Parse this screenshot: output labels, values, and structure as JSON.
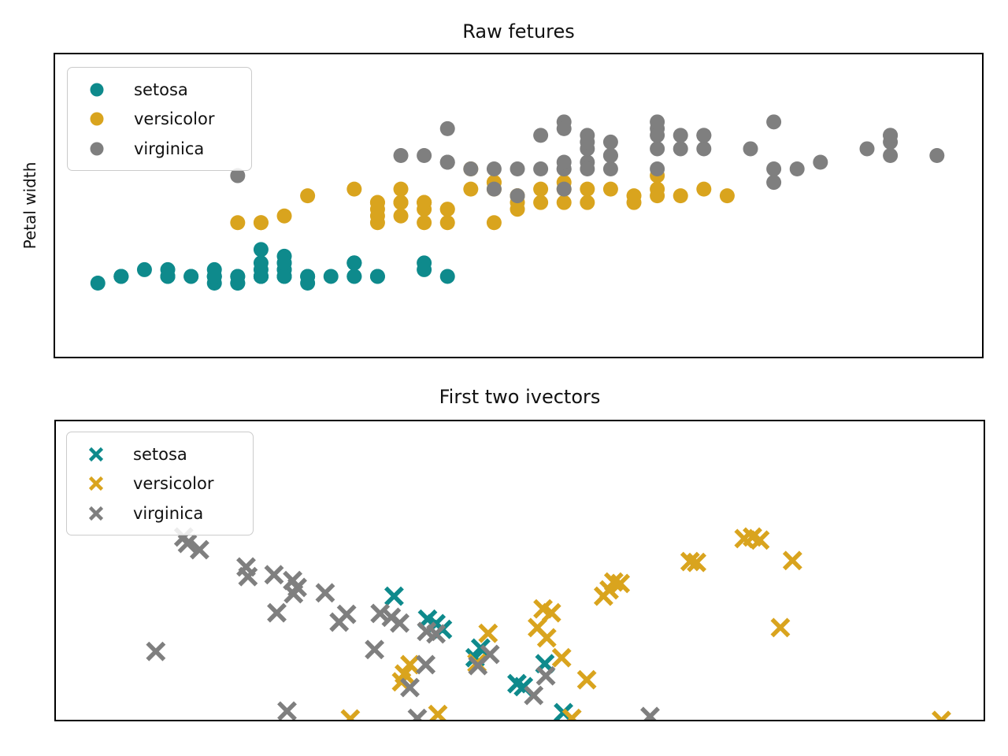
{
  "figure": {
    "background": "#ffffff"
  },
  "palette": {
    "setosa": "#0e8a8c",
    "versicolor": "#d9a41e",
    "virginica": "#7f7f7f"
  },
  "chart_data": [
    {
      "id": "raw-features",
      "type": "scatter",
      "title": "Raw fetures",
      "xlabel": "",
      "ylabel": "Petal width",
      "marker": "circle",
      "marker_size": 9.5,
      "grid": false,
      "xlim": [
        4.11,
        8.1
      ],
      "ylim": [
        -1.02,
        3.53
      ],
      "legend": {
        "location": "upper left",
        "entries": [
          "setosa",
          "versicolor",
          "virginica"
        ]
      },
      "series": [
        {
          "name": "setosa",
          "color": "#0e8a8c",
          "points": [
            [
              5.1,
              0.2
            ],
            [
              4.9,
              0.2
            ],
            [
              4.7,
              0.2
            ],
            [
              4.6,
              0.2
            ],
            [
              5.0,
              0.2
            ],
            [
              5.4,
              0.4
            ],
            [
              4.6,
              0.3
            ],
            [
              5.0,
              0.2
            ],
            [
              4.4,
              0.2
            ],
            [
              4.9,
              0.1
            ],
            [
              5.4,
              0.2
            ],
            [
              4.8,
              0.2
            ],
            [
              4.8,
              0.1
            ],
            [
              4.3,
              0.1
            ],
            [
              5.8,
              0.2
            ],
            [
              5.7,
              0.4
            ],
            [
              5.4,
              0.4
            ],
            [
              5.1,
              0.3
            ],
            [
              5.7,
              0.3
            ],
            [
              5.1,
              0.3
            ],
            [
              5.4,
              0.2
            ],
            [
              5.1,
              0.4
            ],
            [
              4.6,
              0.2
            ],
            [
              5.1,
              0.5
            ],
            [
              4.8,
              0.2
            ],
            [
              5.0,
              0.2
            ],
            [
              5.0,
              0.4
            ],
            [
              5.2,
              0.2
            ],
            [
              5.2,
              0.2
            ],
            [
              4.7,
              0.2
            ],
            [
              4.8,
              0.2
            ],
            [
              5.4,
              0.4
            ],
            [
              5.2,
              0.1
            ],
            [
              5.5,
              0.2
            ],
            [
              4.9,
              0.2
            ],
            [
              5.0,
              0.2
            ],
            [
              5.5,
              0.2
            ],
            [
              4.9,
              0.1
            ],
            [
              4.4,
              0.2
            ],
            [
              5.1,
              0.2
            ],
            [
              5.0,
              0.3
            ],
            [
              4.5,
              0.3
            ],
            [
              4.4,
              0.2
            ],
            [
              5.0,
              0.6
            ],
            [
              5.1,
              0.4
            ],
            [
              4.8,
              0.3
            ],
            [
              5.1,
              0.2
            ],
            [
              4.6,
              0.2
            ],
            [
              5.3,
              0.2
            ],
            [
              5.0,
              0.2
            ]
          ]
        },
        {
          "name": "versicolor",
          "color": "#d9a41e",
          "points": [
            [
              7.0,
              1.4
            ],
            [
              6.4,
              1.5
            ],
            [
              6.9,
              1.5
            ],
            [
              5.5,
              1.3
            ],
            [
              6.5,
              1.5
            ],
            [
              5.7,
              1.3
            ],
            [
              6.3,
              1.6
            ],
            [
              4.9,
              1.0
            ],
            [
              6.6,
              1.3
            ],
            [
              5.2,
              1.4
            ],
            [
              5.0,
              1.0
            ],
            [
              5.9,
              1.5
            ],
            [
              6.0,
              1.0
            ],
            [
              6.1,
              1.4
            ],
            [
              5.6,
              1.3
            ],
            [
              6.7,
              1.4
            ],
            [
              5.6,
              1.5
            ],
            [
              5.8,
              1.0
            ],
            [
              6.2,
              1.5
            ],
            [
              5.6,
              1.1
            ],
            [
              5.9,
              1.8
            ],
            [
              6.1,
              1.3
            ],
            [
              6.3,
              1.5
            ],
            [
              6.1,
              1.2
            ],
            [
              6.4,
              1.3
            ],
            [
              6.6,
              1.4
            ],
            [
              6.8,
              1.4
            ],
            [
              6.7,
              1.7
            ],
            [
              6.0,
              1.5
            ],
            [
              5.7,
              1.0
            ],
            [
              5.5,
              1.1
            ],
            [
              5.5,
              1.0
            ],
            [
              5.8,
              1.2
            ],
            [
              6.0,
              1.6
            ],
            [
              5.4,
              1.5
            ],
            [
              6.0,
              1.6
            ],
            [
              6.7,
              1.5
            ],
            [
              6.3,
              1.3
            ],
            [
              5.6,
              1.3
            ],
            [
              5.5,
              1.3
            ],
            [
              5.5,
              1.2
            ],
            [
              6.1,
              1.4
            ],
            [
              5.8,
              1.2
            ],
            [
              5.0,
              1.0
            ],
            [
              5.6,
              1.3
            ],
            [
              5.7,
              1.2
            ],
            [
              5.7,
              1.3
            ],
            [
              6.2,
              1.3
            ],
            [
              5.1,
              1.1
            ],
            [
              5.7,
              1.3
            ]
          ]
        },
        {
          "name": "virginica",
          "color": "#7f7f7f",
          "points": [
            [
              6.3,
              2.5
            ],
            [
              5.8,
              1.9
            ],
            [
              7.1,
              2.1
            ],
            [
              6.3,
              1.8
            ],
            [
              6.5,
              2.2
            ],
            [
              7.6,
              2.1
            ],
            [
              4.9,
              1.7
            ],
            [
              7.3,
              1.8
            ],
            [
              6.7,
              1.8
            ],
            [
              7.2,
              2.5
            ],
            [
              6.5,
              2.0
            ],
            [
              6.4,
              1.9
            ],
            [
              6.8,
              2.1
            ],
            [
              5.7,
              2.0
            ],
            [
              5.8,
              2.4
            ],
            [
              6.4,
              2.3
            ],
            [
              6.5,
              1.8
            ],
            [
              7.7,
              2.2
            ],
            [
              7.7,
              2.3
            ],
            [
              6.0,
              1.5
            ],
            [
              6.9,
              2.3
            ],
            [
              5.6,
              2.0
            ],
            [
              7.7,
              2.0
            ],
            [
              6.3,
              1.8
            ],
            [
              6.7,
              2.1
            ],
            [
              7.2,
              1.8
            ],
            [
              6.2,
              1.8
            ],
            [
              6.1,
              1.8
            ],
            [
              6.4,
              2.1
            ],
            [
              7.2,
              1.6
            ],
            [
              7.4,
              1.9
            ],
            [
              7.9,
              2.0
            ],
            [
              6.4,
              2.2
            ],
            [
              6.3,
              1.5
            ],
            [
              6.1,
              1.4
            ],
            [
              7.7,
              2.3
            ],
            [
              6.3,
              2.4
            ],
            [
              6.4,
              1.8
            ],
            [
              6.0,
              1.8
            ],
            [
              6.9,
              2.1
            ],
            [
              6.7,
              2.4
            ],
            [
              6.9,
              2.3
            ],
            [
              5.8,
              1.9
            ],
            [
              6.8,
              2.3
            ],
            [
              6.7,
              2.5
            ],
            [
              6.7,
              2.3
            ],
            [
              6.3,
              1.9
            ],
            [
              6.5,
              2.0
            ],
            [
              6.2,
              2.3
            ],
            [
              5.9,
              1.8
            ]
          ]
        }
      ]
    },
    {
      "id": "first-two-ivectors",
      "type": "scatter",
      "title": "First two ivectors",
      "xlabel": "",
      "ylabel": "",
      "marker": "x",
      "marker_size": 10.5,
      "grid": false,
      "xlim": [
        0,
        1
      ],
      "ylim": [
        0,
        1
      ],
      "legend": {
        "location": "upper left",
        "entries": [
          "setosa",
          "versicolor",
          "virginica"
        ]
      },
      "series": [
        {
          "name": "setosa",
          "color": "#0e8a8c",
          "points": [
            [
              0.365,
              0.415
            ],
            [
              0.401,
              0.339
            ],
            [
              0.41,
              0.324
            ],
            [
              0.417,
              0.305
            ],
            [
              0.458,
              0.243
            ],
            [
              0.452,
              0.211
            ],
            [
              0.527,
              0.191
            ],
            [
              0.497,
              0.125
            ],
            [
              0.504,
              0.115
            ],
            [
              0.547,
              0.029
            ]
          ]
        },
        {
          "name": "versicolor",
          "color": "#d9a41e",
          "points": [
            [
              0.741,
              0.606
            ],
            [
              0.75,
              0.611
            ],
            [
              0.758,
              0.601
            ],
            [
              0.683,
              0.53
            ],
            [
              0.69,
              0.527
            ],
            [
              0.793,
              0.533
            ],
            [
              0.601,
              0.462
            ],
            [
              0.608,
              0.457
            ],
            [
              0.596,
              0.436
            ],
            [
              0.59,
              0.415
            ],
            [
              0.525,
              0.373
            ],
            [
              0.534,
              0.36
            ],
            [
              0.519,
              0.311
            ],
            [
              0.529,
              0.277
            ],
            [
              0.545,
              0.211
            ],
            [
              0.572,
              0.138
            ],
            [
              0.466,
              0.292
            ],
            [
              0.454,
              0.193
            ],
            [
              0.382,
              0.188
            ],
            [
              0.376,
              0.157
            ],
            [
              0.373,
              0.131
            ],
            [
              0.78,
              0.311
            ],
            [
              0.318,
              0.008
            ],
            [
              0.412,
              0.023
            ],
            [
              0.556,
              0.01
            ],
            [
              0.953,
              0.003
            ]
          ]
        },
        {
          "name": "virginica",
          "color": "#7f7f7f",
          "points": [
            [
              0.139,
              0.611
            ],
            [
              0.143,
              0.59
            ],
            [
              0.156,
              0.569
            ],
            [
              0.206,
              0.512
            ],
            [
              0.208,
              0.48
            ],
            [
              0.236,
              0.486
            ],
            [
              0.256,
              0.467
            ],
            [
              0.261,
              0.444
            ],
            [
              0.257,
              0.423
            ],
            [
              0.291,
              0.426
            ],
            [
              0.239,
              0.36
            ],
            [
              0.109,
              0.232
            ],
            [
              0.314,
              0.355
            ],
            [
              0.306,
              0.329
            ],
            [
              0.35,
              0.358
            ],
            [
              0.362,
              0.345
            ],
            [
              0.371,
              0.326
            ],
            [
              0.344,
              0.238
            ],
            [
              0.4,
              0.298
            ],
            [
              0.41,
              0.29
            ],
            [
              0.399,
              0.188
            ],
            [
              0.382,
              0.112
            ],
            [
              0.468,
              0.222
            ],
            [
              0.455,
              0.185
            ],
            [
              0.528,
              0.151
            ],
            [
              0.515,
              0.086
            ],
            [
              0.25,
              0.034
            ],
            [
              0.39,
              0.01
            ],
            [
              0.64,
              0.016
            ]
          ]
        }
      ]
    }
  ]
}
